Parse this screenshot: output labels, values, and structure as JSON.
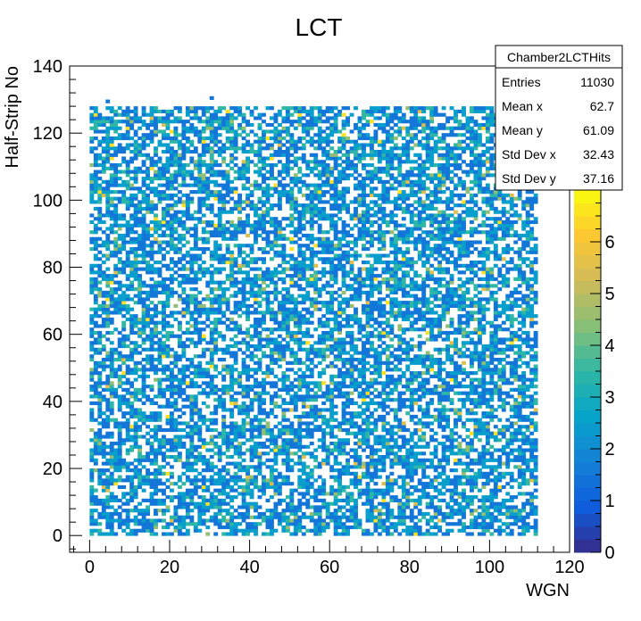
{
  "chart_data": {
    "type": "heatmap",
    "title": "LCT",
    "xlabel": "WGN",
    "ylabel": "Half-Strip No",
    "xlim": [
      -5,
      120
    ],
    "ylim": [
      -5,
      140
    ],
    "x_ticks": [
      0,
      20,
      40,
      60,
      80,
      100,
      120
    ],
    "y_ticks": [
      0,
      20,
      40,
      60,
      80,
      100,
      120,
      140
    ],
    "z_range": [
      0,
      7
    ],
    "z_ticks": [
      0,
      1,
      2,
      3,
      4,
      5,
      6
    ],
    "palette": "kBird",
    "grid": false,
    "data_extent": {
      "x": [
        0,
        112
      ],
      "y": [
        0,
        128
      ]
    },
    "stats_box": {
      "name": "Chamber2LCTHits",
      "rows": [
        {
          "label": "Entries",
          "value": "11030"
        },
        {
          "label": "Mean x",
          "value": "62.7"
        },
        {
          "label": "Mean y",
          "value": "61.09"
        },
        {
          "label": "Std Dev x",
          "value": "32.43"
        },
        {
          "label": "Std Dev y",
          "value": "37.16"
        }
      ]
    }
  },
  "colors": {
    "palette_stops": [
      "#352a87",
      "#0f5cdd",
      "#1481d6",
      "#06a4ca",
      "#2eb7a4",
      "#87bf77",
      "#d1bb59",
      "#fec832",
      "#f9fb0e"
    ]
  }
}
